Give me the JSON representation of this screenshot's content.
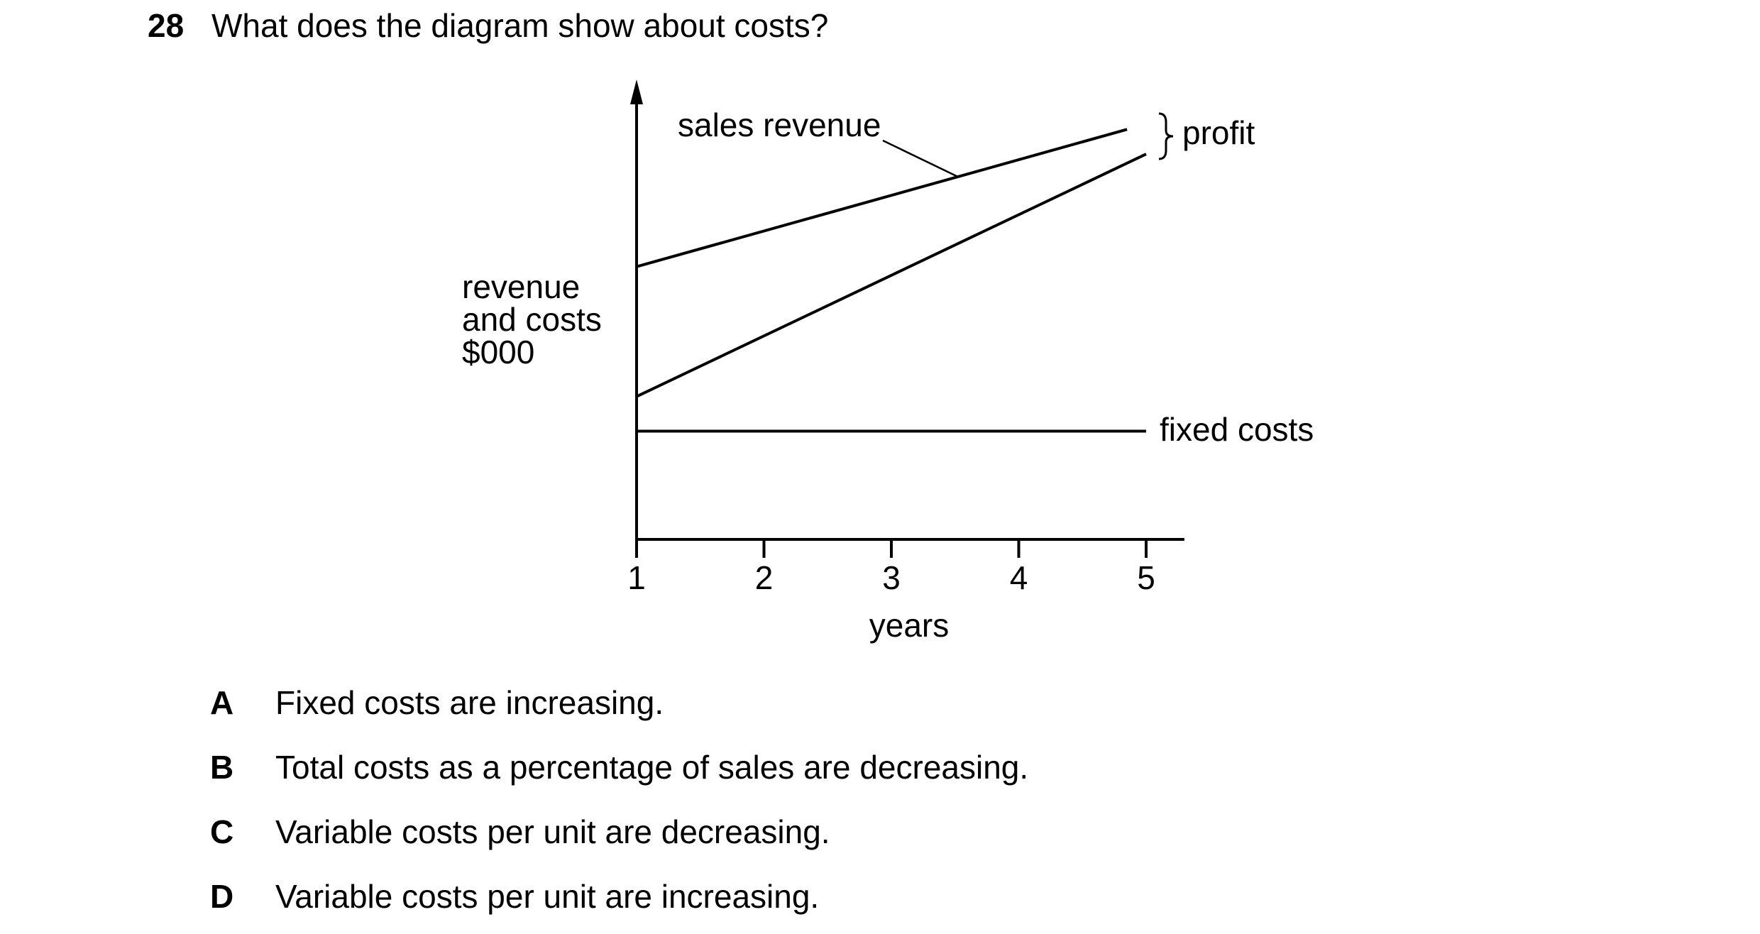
{
  "question": {
    "number": "28",
    "text": "What does the diagram show about costs?"
  },
  "chart_data": {
    "type": "line",
    "title": "",
    "xlabel": "years",
    "ylabel": "revenue and costs $000",
    "ylabel_lines": [
      "revenue",
      "and costs",
      "$000"
    ],
    "x": [
      1,
      2,
      3,
      4,
      5
    ],
    "xlim": [
      1,
      5.3
    ],
    "ylim": [
      0,
      100
    ],
    "grid": false,
    "series": [
      {
        "name": "sales revenue",
        "x": [
          1,
          4.85
        ],
        "values": [
          63,
          94.7
        ]
      },
      {
        "name": "",
        "x": [
          1,
          5
        ],
        "values": [
          33,
          89
        ]
      },
      {
        "name": "fixed costs",
        "x": [
          1,
          5
        ],
        "values": [
          25,
          25
        ]
      }
    ],
    "annotations": [
      {
        "text": "profit",
        "between_series": [
          "sales revenue",
          ""
        ],
        "at_x": 5
      }
    ]
  },
  "options": [
    {
      "letter": "A",
      "text": "Fixed costs are increasing."
    },
    {
      "letter": "B",
      "text": "Total costs as a percentage of sales are decreasing."
    },
    {
      "letter": "C",
      "text": "Variable costs per unit are decreasing."
    },
    {
      "letter": "D",
      "text": "Variable costs per unit are increasing."
    }
  ]
}
